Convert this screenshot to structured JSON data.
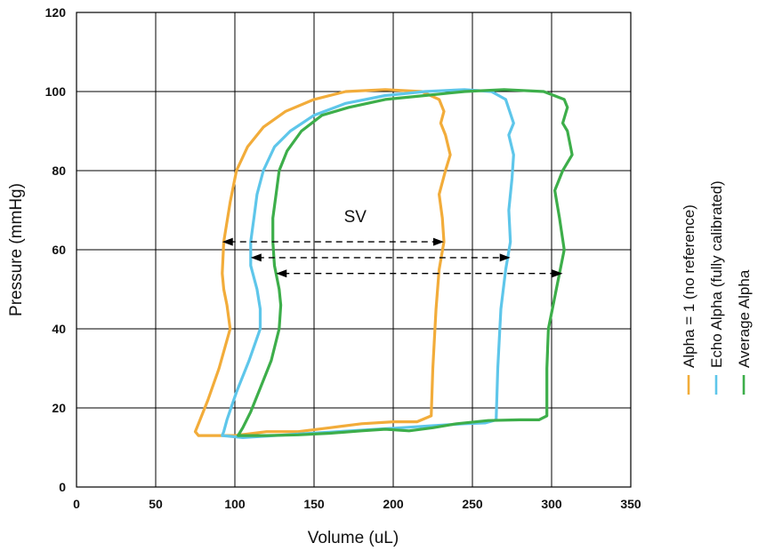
{
  "chart_data": {
    "type": "line",
    "title": "",
    "xlabel": "Volume (uL)",
    "ylabel": "Pressure (mmHg)",
    "xlim": [
      0,
      350
    ],
    "ylim": [
      0,
      120
    ],
    "xticks": [
      0,
      50,
      100,
      150,
      200,
      250,
      300,
      350
    ],
    "yticks": [
      0,
      20,
      40,
      60,
      80,
      100,
      120
    ],
    "grid": true,
    "legend_position": "right, vertical",
    "series": [
      {
        "name": "Alpha = 1 (no reference)",
        "color": "#F2AC3A",
        "points": [
          [
            77,
            13
          ],
          [
            85,
            13
          ],
          [
            100,
            13
          ],
          [
            120,
            14
          ],
          [
            140,
            14
          ],
          [
            160,
            15
          ],
          [
            180,
            16
          ],
          [
            200,
            16.5
          ],
          [
            215,
            16.5
          ],
          [
            224,
            18
          ],
          [
            225,
            30
          ],
          [
            227,
            45
          ],
          [
            229,
            55
          ],
          [
            232,
            62
          ],
          [
            231,
            68
          ],
          [
            229,
            74
          ],
          [
            233,
            80
          ],
          [
            236,
            84
          ],
          [
            233,
            89
          ],
          [
            230,
            92
          ],
          [
            232,
            95
          ],
          [
            229,
            98
          ],
          [
            218,
            100
          ],
          [
            195,
            100.5
          ],
          [
            170,
            100
          ],
          [
            150,
            98
          ],
          [
            132,
            95
          ],
          [
            118,
            91
          ],
          [
            108,
            86
          ],
          [
            101,
            80
          ],
          [
            97,
            72
          ],
          [
            93,
            62
          ],
          [
            92,
            54
          ],
          [
            93,
            50
          ],
          [
            95,
            46
          ],
          [
            97,
            40
          ],
          [
            90,
            30
          ],
          [
            83,
            22
          ],
          [
            77,
            16
          ],
          [
            75,
            14
          ],
          [
            77,
            13
          ]
        ]
      },
      {
        "name": "Echo Alpha (fully calibrated)",
        "color": "#5EC6EA",
        "points": [
          [
            92,
            13
          ],
          [
            105,
            12.5
          ],
          [
            125,
            13
          ],
          [
            145,
            13.5
          ],
          [
            165,
            14
          ],
          [
            185,
            14.5
          ],
          [
            205,
            15
          ],
          [
            225,
            15.5
          ],
          [
            245,
            16
          ],
          [
            258,
            16.2
          ],
          [
            265,
            17
          ],
          [
            266,
            30
          ],
          [
            268,
            45
          ],
          [
            271,
            55
          ],
          [
            274,
            62
          ],
          [
            273,
            70
          ],
          [
            275,
            78
          ],
          [
            276,
            84
          ],
          [
            273,
            89
          ],
          [
            276,
            92
          ],
          [
            271,
            98
          ],
          [
            262,
            100
          ],
          [
            245,
            100.5
          ],
          [
            220,
            100
          ],
          [
            195,
            99
          ],
          [
            170,
            97
          ],
          [
            150,
            94
          ],
          [
            135,
            90
          ],
          [
            125,
            86
          ],
          [
            118,
            80
          ],
          [
            114,
            74
          ],
          [
            112,
            68
          ],
          [
            110,
            62
          ],
          [
            110,
            56
          ],
          [
            114,
            50
          ],
          [
            116,
            45
          ],
          [
            116,
            40
          ],
          [
            109,
            32
          ],
          [
            101,
            24
          ],
          [
            95,
            17
          ],
          [
            93,
            14
          ],
          [
            92,
            13
          ]
        ]
      },
      {
        "name": "Average Alpha",
        "color": "#3DAE4A",
        "points": [
          [
            102,
            13
          ],
          [
            120,
            13
          ],
          [
            140,
            13.2
          ],
          [
            160,
            13.6
          ],
          [
            180,
            14.2
          ],
          [
            195,
            14.6
          ],
          [
            210,
            14.2
          ],
          [
            225,
            15
          ],
          [
            240,
            16
          ],
          [
            260,
            16.8
          ],
          [
            280,
            17
          ],
          [
            292,
            17
          ],
          [
            297,
            18
          ],
          [
            297,
            30
          ],
          [
            298,
            40
          ],
          [
            303,
            50
          ],
          [
            308,
            60
          ],
          [
            305,
            68
          ],
          [
            302,
            75
          ],
          [
            307,
            80
          ],
          [
            313,
            84
          ],
          [
            310,
            90
          ],
          [
            307,
            92
          ],
          [
            310,
            96
          ],
          [
            308,
            98
          ],
          [
            295,
            100
          ],
          [
            270,
            100.5
          ],
          [
            245,
            100
          ],
          [
            220,
            99
          ],
          [
            195,
            98
          ],
          [
            172,
            96
          ],
          [
            155,
            94
          ],
          [
            142,
            90
          ],
          [
            133,
            85
          ],
          [
            128,
            80
          ],
          [
            126,
            74
          ],
          [
            124,
            68
          ],
          [
            124,
            62
          ],
          [
            125,
            56
          ],
          [
            128,
            50
          ],
          [
            129,
            46
          ],
          [
            128,
            40
          ],
          [
            123,
            32
          ],
          [
            116,
            25
          ],
          [
            110,
            19
          ],
          [
            105,
            15
          ],
          [
            102,
            13
          ]
        ]
      }
    ],
    "annotations": [
      {
        "text": "SV",
        "x": 176,
        "y": 67
      },
      {
        "type": "double-arrow",
        "x1": 92,
        "x2": 232,
        "y": 62
      },
      {
        "type": "double-arrow",
        "x1": 110,
        "x2": 274,
        "y": 58
      },
      {
        "type": "double-arrow",
        "x1": 126,
        "x2": 307,
        "y": 54
      }
    ]
  }
}
